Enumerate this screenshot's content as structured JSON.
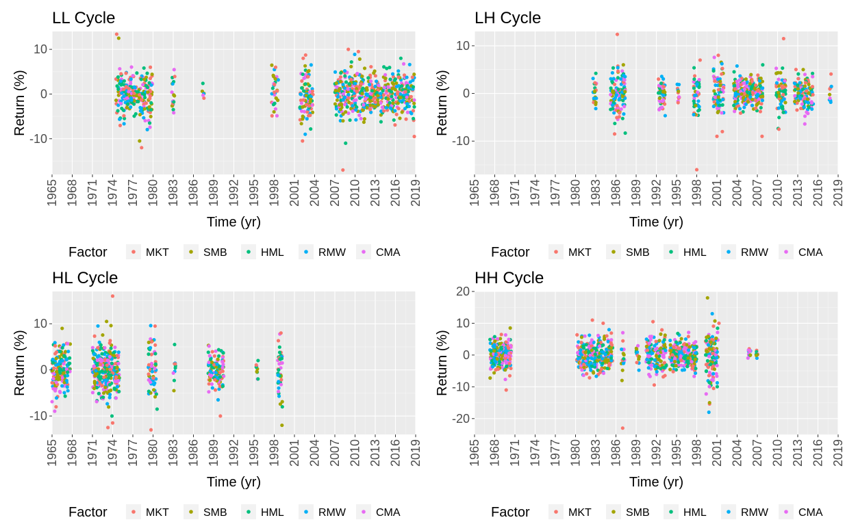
{
  "chart_data": [
    {
      "type": "scatter",
      "title": "LL Cycle",
      "xlabel": "Time (yr)",
      "ylabel": "Return (%)",
      "xlim": [
        1965,
        2019
      ],
      "ylim": [
        -18,
        14
      ],
      "x_ticks": [
        1965,
        1968,
        1971,
        1974,
        1977,
        1980,
        1983,
        1986,
        1989,
        1992,
        1995,
        1998,
        2001,
        2004,
        2007,
        2010,
        2013,
        2016,
        2019
      ],
      "y_ticks": [
        -10,
        0,
        10
      ],
      "grid": true,
      "legend_position": "bottom",
      "clusters": [
        {
          "x": [
            1974.5,
            1979.9
          ],
          "n": 220,
          "spread": 2.6
        },
        {
          "x": [
            1982.8,
            1983.3
          ],
          "n": 18,
          "spread": 2.6
        },
        {
          "x": [
            1987.3,
            1987.6
          ],
          "n": 6,
          "spread": 0.8
        },
        {
          "x": [
            1997.6,
            1998.6
          ],
          "n": 30,
          "spread": 3.0
        },
        {
          "x": [
            2001.8,
            2003.8
          ],
          "n": 90,
          "spread": 3.2
        },
        {
          "x": [
            2007.0,
            2018.8
          ],
          "n": 480,
          "spread": 2.8
        }
      ],
      "outliers": [
        {
          "x": 1974.6,
          "y": 13.5,
          "series": "MKT"
        },
        {
          "x": 1974.9,
          "y": 12.5,
          "series": "SMB"
        },
        {
          "x": 1978.0,
          "y": -10.5,
          "series": "SMB"
        },
        {
          "x": 1978.3,
          "y": -12.0,
          "series": "MKT"
        },
        {
          "x": 1979.5,
          "y": -6.5,
          "series": "HML"
        },
        {
          "x": 1979.6,
          "y": 6.0,
          "series": "MKT"
        },
        {
          "x": 2008.2,
          "y": -17.0,
          "series": "MKT"
        },
        {
          "x": 2008.6,
          "y": -11.0,
          "series": "HML"
        },
        {
          "x": 2002.2,
          "y": -10.5,
          "series": "MKT"
        },
        {
          "x": 2002.6,
          "y": -9.0,
          "series": "RMW"
        },
        {
          "x": 2009.0,
          "y": 10.0,
          "series": "MKT"
        },
        {
          "x": 2010.5,
          "y": 9.5,
          "series": "MKT"
        },
        {
          "x": 2002.3,
          "y": 8.0,
          "series": "MKT"
        },
        {
          "x": 2018.8,
          "y": -9.5,
          "series": "MKT"
        },
        {
          "x": 2016.8,
          "y": 8.0,
          "series": "HML"
        },
        {
          "x": 1998.2,
          "y": 6.0,
          "series": "MKT"
        }
      ],
      "series": [
        {
          "name": "MKT",
          "color": "#F8766D"
        },
        {
          "name": "SMB",
          "color": "#A3A500"
        },
        {
          "name": "HML",
          "color": "#00BF7D"
        },
        {
          "name": "RMW",
          "color": "#00B0F6"
        },
        {
          "name": "CMA",
          "color": "#E76BF3"
        }
      ],
      "legend_title": "Factor"
    },
    {
      "type": "scatter",
      "title": "LH Cycle",
      "xlabel": "Time (yr)",
      "ylabel": "Return (%)",
      "xlim": [
        1965,
        2019
      ],
      "ylim": [
        -17,
        13
      ],
      "x_ticks": [
        1965,
        1968,
        1971,
        1974,
        1977,
        1980,
        1983,
        1986,
        1989,
        1992,
        1995,
        1998,
        2001,
        2004,
        2007,
        2010,
        2013,
        2016,
        2019
      ],
      "y_ticks": [
        -10,
        0,
        10
      ],
      "grid": true,
      "legend_position": "bottom",
      "clusters": [
        {
          "x": [
            1982.6,
            1983.1
          ],
          "n": 20,
          "spread": 1.8
        },
        {
          "x": [
            1985.2,
            1987.4
          ],
          "n": 110,
          "spread": 2.6
        },
        {
          "x": [
            1992.3,
            1993.4
          ],
          "n": 50,
          "spread": 1.8
        },
        {
          "x": [
            1995.0,
            1995.4
          ],
          "n": 12,
          "spread": 1.2
        },
        {
          "x": [
            1997.5,
            1998.4
          ],
          "n": 40,
          "spread": 3.0
        },
        {
          "x": [
            2000.5,
            2002.0
          ],
          "n": 70,
          "spread": 3.2
        },
        {
          "x": [
            2003.5,
            2007.8
          ],
          "n": 230,
          "spread": 1.8
        },
        {
          "x": [
            2009.8,
            2011.3
          ],
          "n": 70,
          "spread": 2.3
        },
        {
          "x": [
            2012.5,
            2015.3
          ],
          "n": 120,
          "spread": 2.0
        },
        {
          "x": [
            2017.7,
            2018.0
          ],
          "n": 10,
          "spread": 1.5
        }
      ],
      "outliers": [
        {
          "x": 1986.2,
          "y": 12.5,
          "series": "MKT"
        },
        {
          "x": 1998.0,
          "y": -16.0,
          "series": "MKT"
        },
        {
          "x": 2010.9,
          "y": 11.5,
          "series": "MKT"
        },
        {
          "x": 1985.8,
          "y": -8.5,
          "series": "MKT"
        },
        {
          "x": 2001.0,
          "y": -9.0,
          "series": "MKT"
        },
        {
          "x": 2001.8,
          "y": -8.0,
          "series": "MKT"
        },
        {
          "x": 2007.7,
          "y": -9.0,
          "series": "MKT"
        },
        {
          "x": 1998.5,
          "y": 7.0,
          "series": "MKT"
        },
        {
          "x": 2001.2,
          "y": 8.0,
          "series": "MKT"
        },
        {
          "x": 1987.1,
          "y": 6.0,
          "series": "SMB"
        },
        {
          "x": 2007.8,
          "y": 6.0,
          "series": "HML"
        },
        {
          "x": 2010.2,
          "y": -7.5,
          "series": "MKT"
        }
      ],
      "series": [
        {
          "name": "MKT",
          "color": "#F8766D"
        },
        {
          "name": "SMB",
          "color": "#A3A500"
        },
        {
          "name": "HML",
          "color": "#00BF7D"
        },
        {
          "name": "RMW",
          "color": "#00B0F6"
        },
        {
          "name": "CMA",
          "color": "#E76BF3"
        }
      ],
      "legend_title": "Factor"
    },
    {
      "type": "scatter",
      "title": "HL Cycle",
      "xlabel": "Time (yr)",
      "ylabel": "Return (%)",
      "xlim": [
        1965,
        2019
      ],
      "ylim": [
        -14,
        17
      ],
      "x_ticks": [
        1965,
        1968,
        1971,
        1974,
        1977,
        1980,
        1983,
        1986,
        1989,
        1992,
        1995,
        1998,
        2001,
        2004,
        2007,
        2010,
        2013,
        2016,
        2019
      ],
      "y_ticks": [
        -10,
        0,
        10
      ],
      "grid": true,
      "legend_position": "bottom",
      "clusters": [
        {
          "x": [
            1965.0,
            1967.7
          ],
          "n": 160,
          "spread": 2.8
        },
        {
          "x": [
            1971.0,
            1975.0
          ],
          "n": 300,
          "spread": 3.0
        },
        {
          "x": [
            1979.3,
            1980.5
          ],
          "n": 60,
          "spread": 3.0
        },
        {
          "x": [
            1983.0,
            1983.4
          ],
          "n": 8,
          "spread": 1.5
        },
        {
          "x": [
            1988.2,
            1990.5
          ],
          "n": 110,
          "spread": 2.3
        },
        {
          "x": [
            1995.3,
            1995.6
          ],
          "n": 10,
          "spread": 1.5
        },
        {
          "x": [
            1998.5,
            1999.2
          ],
          "n": 40,
          "spread": 4.0
        }
      ],
      "outliers": [
        {
          "x": 1974.0,
          "y": 16.0,
          "series": "MKT"
        },
        {
          "x": 1973.1,
          "y": 10.5,
          "series": "SMB"
        },
        {
          "x": 1973.3,
          "y": -12.5,
          "series": "MKT"
        },
        {
          "x": 1974.0,
          "y": -11.5,
          "series": "MKT"
        },
        {
          "x": 1973.9,
          "y": -10.0,
          "series": "HML"
        },
        {
          "x": 1979.7,
          "y": -13.0,
          "series": "MKT"
        },
        {
          "x": 1980.3,
          "y": 9.5,
          "series": "MKT"
        },
        {
          "x": 1990.0,
          "y": -10.0,
          "series": "MKT"
        },
        {
          "x": 1966.5,
          "y": 9.0,
          "series": "SMB"
        },
        {
          "x": 1999.0,
          "y": 8.0,
          "series": "MKT"
        },
        {
          "x": 1999.2,
          "y": -8.0,
          "series": "HML"
        },
        {
          "x": 1965.6,
          "y": -8.0,
          "series": "MKT"
        },
        {
          "x": 1980.6,
          "y": -8.5,
          "series": "HML"
        },
        {
          "x": 1983.2,
          "y": 5.5,
          "series": "HML"
        },
        {
          "x": 1983.1,
          "y": -4.5,
          "series": "SMB"
        }
      ],
      "series": [
        {
          "name": "MKT",
          "color": "#F8766D"
        },
        {
          "name": "SMB",
          "color": "#A3A500"
        },
        {
          "name": "HML",
          "color": "#00BF7D"
        },
        {
          "name": "RMW",
          "color": "#00B0F6"
        },
        {
          "name": "CMA",
          "color": "#E76BF3"
        }
      ],
      "legend_title": "Factor"
    },
    {
      "type": "scatter",
      "title": "HH Cycle",
      "xlabel": "Time (yr)",
      "ylabel": "Return (%)",
      "xlim": [
        1965,
        2019
      ],
      "ylim": [
        -25,
        20
      ],
      "x_ticks": [
        1965,
        1968,
        1971,
        1974,
        1977,
        1980,
        1983,
        1986,
        1989,
        1992,
        1995,
        1998,
        2001,
        2004,
        2007,
        2010,
        2013,
        2016,
        2019
      ],
      "y_ticks": [
        -20,
        -10,
        0,
        10,
        20
      ],
      "grid": true,
      "legend_position": "bottom",
      "clusters": [
        {
          "x": [
            1967.3,
            1970.5
          ],
          "n": 190,
          "spread": 3.0
        },
        {
          "x": [
            1980.2,
            1985.5
          ],
          "n": 300,
          "spread": 3.0
        },
        {
          "x": [
            1986.8,
            1987.3
          ],
          "n": 14,
          "spread": 3.0
        },
        {
          "x": [
            1989.0,
            1989.5
          ],
          "n": 14,
          "spread": 2.5
        },
        {
          "x": [
            1990.5,
            1993.5
          ],
          "n": 130,
          "spread": 3.0
        },
        {
          "x": [
            1994.0,
            1998.0
          ],
          "n": 220,
          "spread": 2.5
        },
        {
          "x": [
            1999.3,
            2001.2
          ],
          "n": 120,
          "spread": 5.0
        },
        {
          "x": [
            2005.6,
            2006.0
          ],
          "n": 12,
          "spread": 1.5
        },
        {
          "x": [
            2006.8,
            2007.1
          ],
          "n": 8,
          "spread": 1.5
        }
      ],
      "outliers": [
        {
          "x": 1999.6,
          "y": 18.0,
          "series": "SMB"
        },
        {
          "x": 1987.0,
          "y": -23.0,
          "series": "MKT"
        },
        {
          "x": 1999.8,
          "y": -18.0,
          "series": "RMW"
        },
        {
          "x": 1999.9,
          "y": -15.0,
          "series": "SMB"
        },
        {
          "x": 1982.5,
          "y": 11.0,
          "series": "MKT"
        },
        {
          "x": 1984.1,
          "y": 10.0,
          "series": "MKT"
        },
        {
          "x": 1991.5,
          "y": 10.5,
          "series": "MKT"
        },
        {
          "x": 2000.3,
          "y": 13.0,
          "series": "RMW"
        },
        {
          "x": 2001.3,
          "y": 10.0,
          "series": "MKT"
        },
        {
          "x": 1969.7,
          "y": -11.0,
          "series": "MKT"
        },
        {
          "x": 2000.5,
          "y": -10.5,
          "series": "MKT"
        },
        {
          "x": 1986.9,
          "y": -8.0,
          "series": "SMB"
        },
        {
          "x": 1970.3,
          "y": 8.5,
          "series": "SMB"
        }
      ],
      "series": [
        {
          "name": "MKT",
          "color": "#F8766D"
        },
        {
          "name": "SMB",
          "color": "#A3A500"
        },
        {
          "name": "HML",
          "color": "#00BF7D"
        },
        {
          "name": "RMW",
          "color": "#00B0F6"
        },
        {
          "name": "CMA",
          "color": "#E76BF3"
        }
      ],
      "legend_title": "Factor"
    }
  ]
}
